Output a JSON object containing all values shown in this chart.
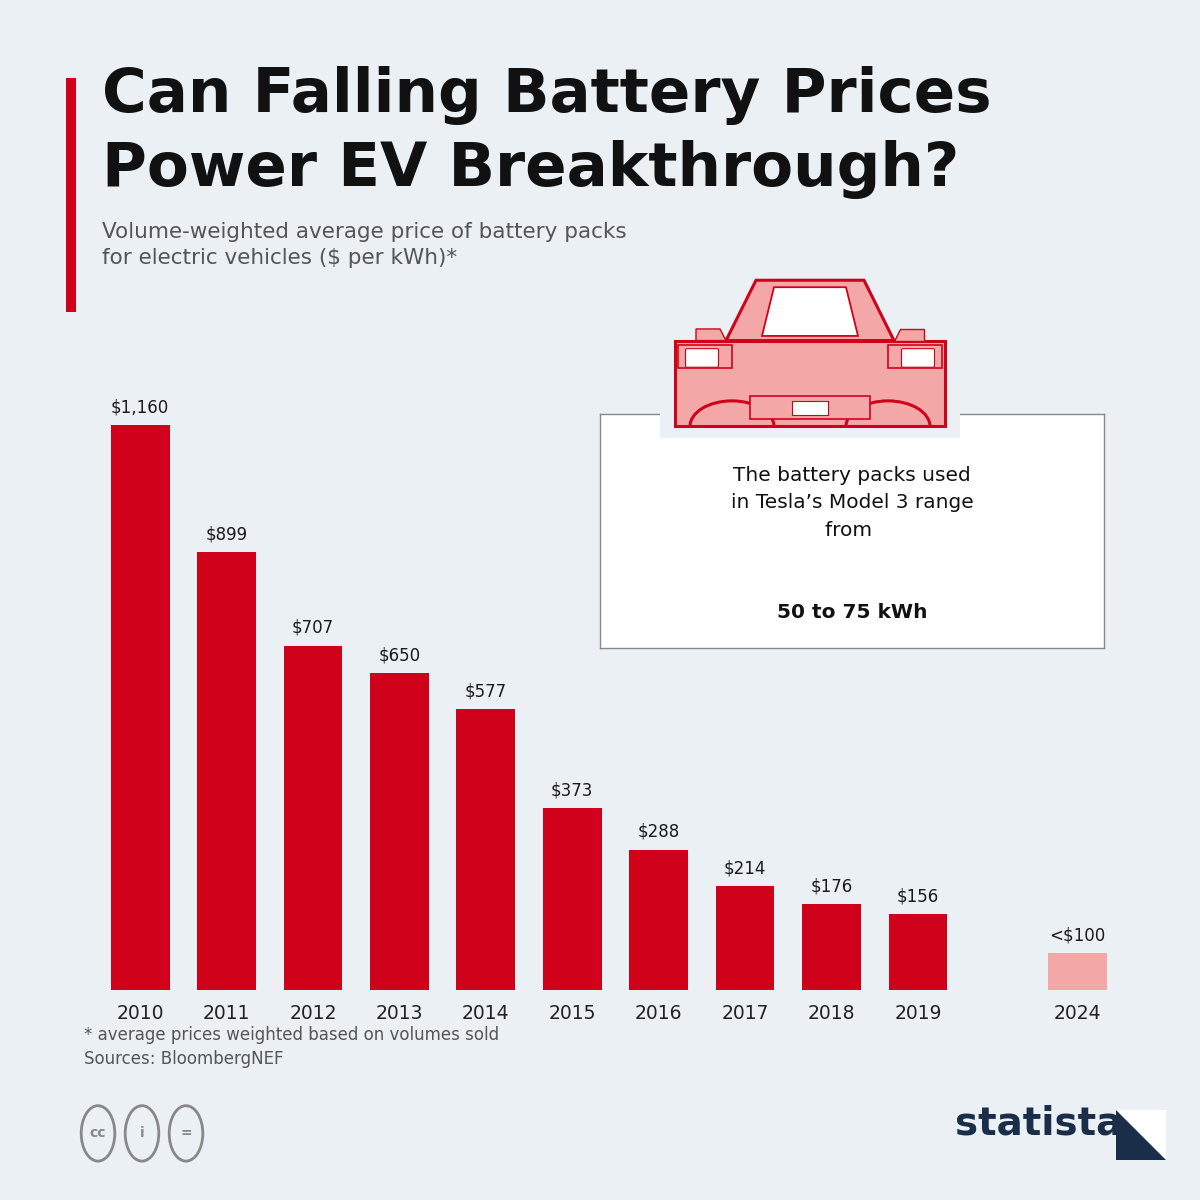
{
  "title_line1": "Can Falling Battery Prices",
  "title_line2": "Power EV Breakthrough?",
  "subtitle_line1": "Volume-weighted average price of battery packs",
  "subtitle_line2": "for electric vehicles ($ per kWh)*",
  "years": [
    "2010",
    "2011",
    "2012",
    "2013",
    "2014",
    "2015",
    "2016",
    "2017",
    "2018",
    "2019"
  ],
  "values": [
    1160,
    899,
    707,
    650,
    577,
    373,
    288,
    214,
    176,
    156
  ],
  "labels": [
    "$1,160",
    "$899",
    "$707",
    "$650",
    "$577",
    "$373",
    "$288",
    "$214",
    "$176",
    "$156"
  ],
  "bar_color": "#D0021B",
  "bar_2024_color": "#F4A7A7",
  "bar_2024_label": "<$100",
  "bar_2024_year": "2024",
  "bar_2024_value": 75,
  "background_color": "#EBF0F5",
  "accent_color": "#D0021B",
  "footnote_line1": "* average prices weighted based on volumes sold",
  "footnote_line2": "Sources: BloombergNEF",
  "statista_color": "#1A2E4A",
  "annotation_normal": "The battery packs used\nin Tesla’s Model 3 range\nfrom ",
  "annotation_bold": "50 to 75 kWh"
}
